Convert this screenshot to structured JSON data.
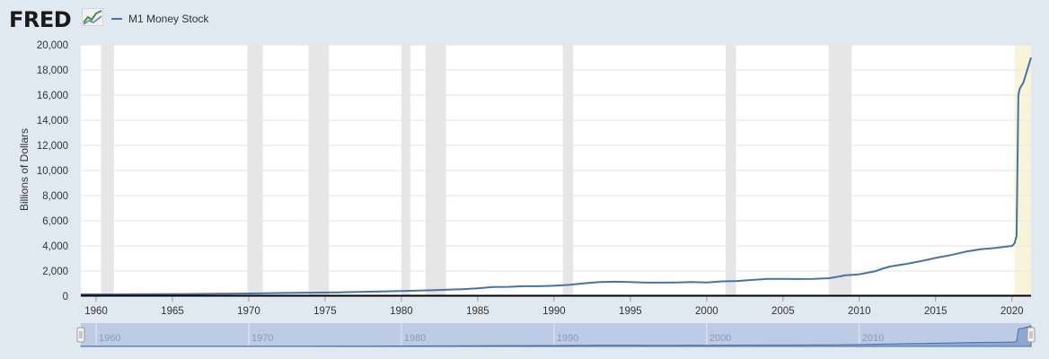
{
  "logo": {
    "text": "FRED"
  },
  "chart_data": {
    "type": "line",
    "title": "",
    "xlabel": "",
    "ylabel": "Billions of Dollars",
    "ylim": [
      0,
      20000
    ],
    "xlim": [
      1959.0,
      2021.25
    ],
    "y_ticks": [
      "0",
      "2,000",
      "4,000",
      "6,000",
      "8,000",
      "10,000",
      "12,000",
      "14,000",
      "16,000",
      "18,000",
      "20,000"
    ],
    "x_ticks": [
      "1960",
      "1965",
      "1970",
      "1975",
      "1980",
      "1985",
      "1990",
      "1995",
      "2000",
      "2005",
      "2010",
      "2015",
      "2020"
    ],
    "grid": true,
    "legend_position": "top-left",
    "series_color": "#4572a7",
    "recession_color": "#e6e6e6",
    "highlight_color": "#f7f4d9",
    "series": [
      {
        "name": "M1 Money Stock",
        "x": [
          1959.0,
          1960.0,
          1962.0,
          1964.0,
          1966.0,
          1968.0,
          1970.0,
          1972.0,
          1974.0,
          1976.0,
          1978.0,
          1980.0,
          1982.0,
          1984.0,
          1985.0,
          1986.0,
          1987.0,
          1988.0,
          1989.0,
          1990.0,
          1991.0,
          1992.0,
          1993.0,
          1994.0,
          1995.0,
          1996.0,
          1997.0,
          1998.0,
          1999.0,
          2000.0,
          2001.0,
          2002.0,
          2003.0,
          2004.0,
          2005.0,
          2006.0,
          2007.0,
          2008.0,
          2008.75,
          2009.0,
          2010.0,
          2011.0,
          2011.5,
          2012.0,
          2013.0,
          2014.0,
          2015.0,
          2016.0,
          2017.0,
          2018.0,
          2019.0,
          2019.5,
          2020.0,
          2020.17,
          2020.3,
          2020.42,
          2020.5,
          2020.75,
          2021.0,
          2021.25
        ],
        "values": [
          140,
          141,
          147,
          160,
          170,
          196,
          214,
          249,
          275,
          307,
          360,
          410,
          475,
          555,
          620,
          730,
          745,
          790,
          795,
          825,
          900,
          1030,
          1130,
          1150,
          1130,
          1080,
          1075,
          1095,
          1125,
          1090,
          1180,
          1210,
          1290,
          1370,
          1375,
          1365,
          1380,
          1430,
          1580,
          1650,
          1740,
          1970,
          2180,
          2360,
          2550,
          2780,
          3040,
          3270,
          3550,
          3740,
          3850,
          3930,
          4000,
          4200,
          4800,
          16000,
          16500,
          17000,
          18000,
          19000
        ]
      }
    ],
    "recessions": [
      [
        1960.33,
        1961.17
      ],
      [
        1969.92,
        1970.92
      ],
      [
        1973.92,
        1975.25
      ],
      [
        1980.0,
        1980.58
      ],
      [
        1981.58,
        1982.92
      ],
      [
        1990.58,
        1991.25
      ],
      [
        2001.25,
        2001.92
      ],
      [
        2008.0,
        2009.5
      ]
    ],
    "highlight": [
      2020.17,
      2021.25
    ],
    "navigator": {
      "ticks": [
        "1960",
        "1970",
        "1980",
        "1990",
        "2000",
        "2010"
      ]
    }
  }
}
